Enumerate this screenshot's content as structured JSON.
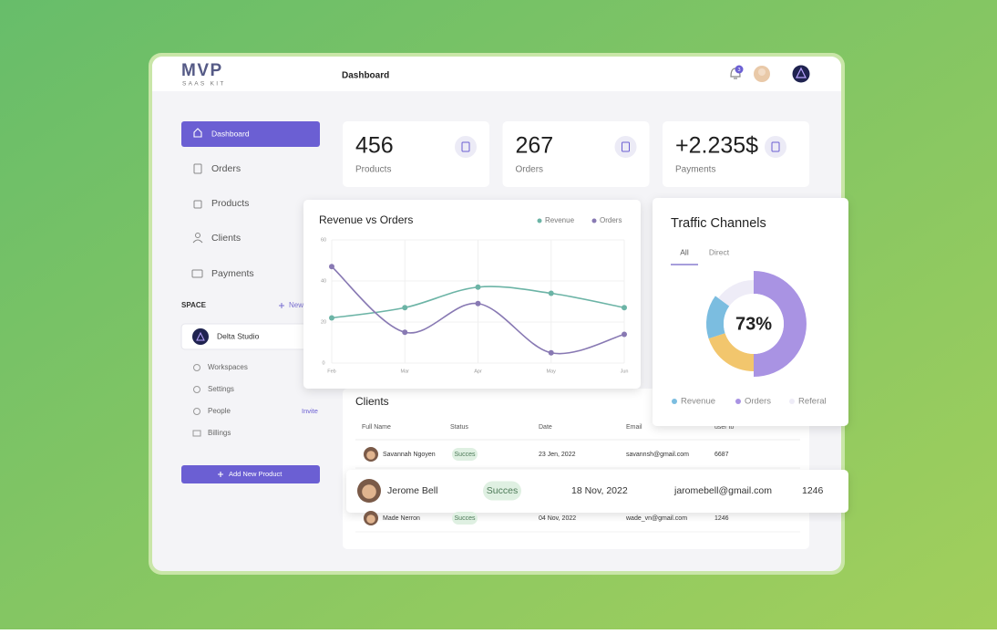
{
  "brand": {
    "name": "MVP",
    "tagline": "SAAS KIT"
  },
  "header": {
    "title": "Dashboard",
    "notifications": "3"
  },
  "sidebar": {
    "nav": [
      "Dashboard",
      "Orders",
      "Products",
      "Clients",
      "Payments"
    ],
    "space_title": "SPACE",
    "new_label": "New",
    "workspace": "Delta Studio",
    "links": [
      "Workspaces",
      "Settings",
      "People",
      "Billings"
    ],
    "invite": "Invite",
    "button": "Add New Product"
  },
  "stats": [
    {
      "value": "456",
      "label": "Products"
    },
    {
      "value": "267",
      "label": "Orders"
    },
    {
      "value": "+2.235$",
      "label": "Payments"
    }
  ],
  "chart_data": [
    {
      "type": "line",
      "title": "Revenue vs Orders",
      "categories": [
        "Feb",
        "Mar",
        "Apr",
        "May",
        "Jun"
      ],
      "ylim": [
        0,
        60
      ],
      "yticks": [
        0,
        20,
        40,
        60
      ],
      "grid": true,
      "series": [
        {
          "name": "Revenue",
          "color": "#6cb4a6",
          "values": [
            22,
            27,
            37,
            34,
            27
          ]
        },
        {
          "name": "Orders",
          "color": "#8879b3",
          "values": [
            47,
            15,
            29,
            5,
            14
          ]
        }
      ]
    },
    {
      "type": "pie",
      "title": "Traffic Channels",
      "tabs": [
        "All",
        "Direct"
      ],
      "center_label": "73%",
      "categories": [
        "Orders",
        null,
        "Revenue",
        "Referal"
      ],
      "values": [
        50,
        20,
        15,
        15
      ],
      "colors": [
        "#a993e3",
        "#f2c66d",
        "#7bbde0",
        "#eeecf7"
      ]
    }
  ],
  "clients": {
    "title": "Clients",
    "columns": [
      "Full Name",
      "Status",
      "Date",
      "Email",
      "user to"
    ],
    "rows": [
      [
        "Savannah Ngoyen",
        "Succes",
        "23 Jen, 2022",
        "savannsh@gmail.com",
        "6687"
      ],
      [
        "Jerome Bell",
        "Succes",
        "18 Nov, 2022",
        "jaromebell@gmail.com",
        "1246"
      ],
      [
        "Made Nerron",
        "Succes",
        "04 Nov, 2022",
        "wade_vn@gmail.com",
        "1246"
      ]
    ]
  }
}
